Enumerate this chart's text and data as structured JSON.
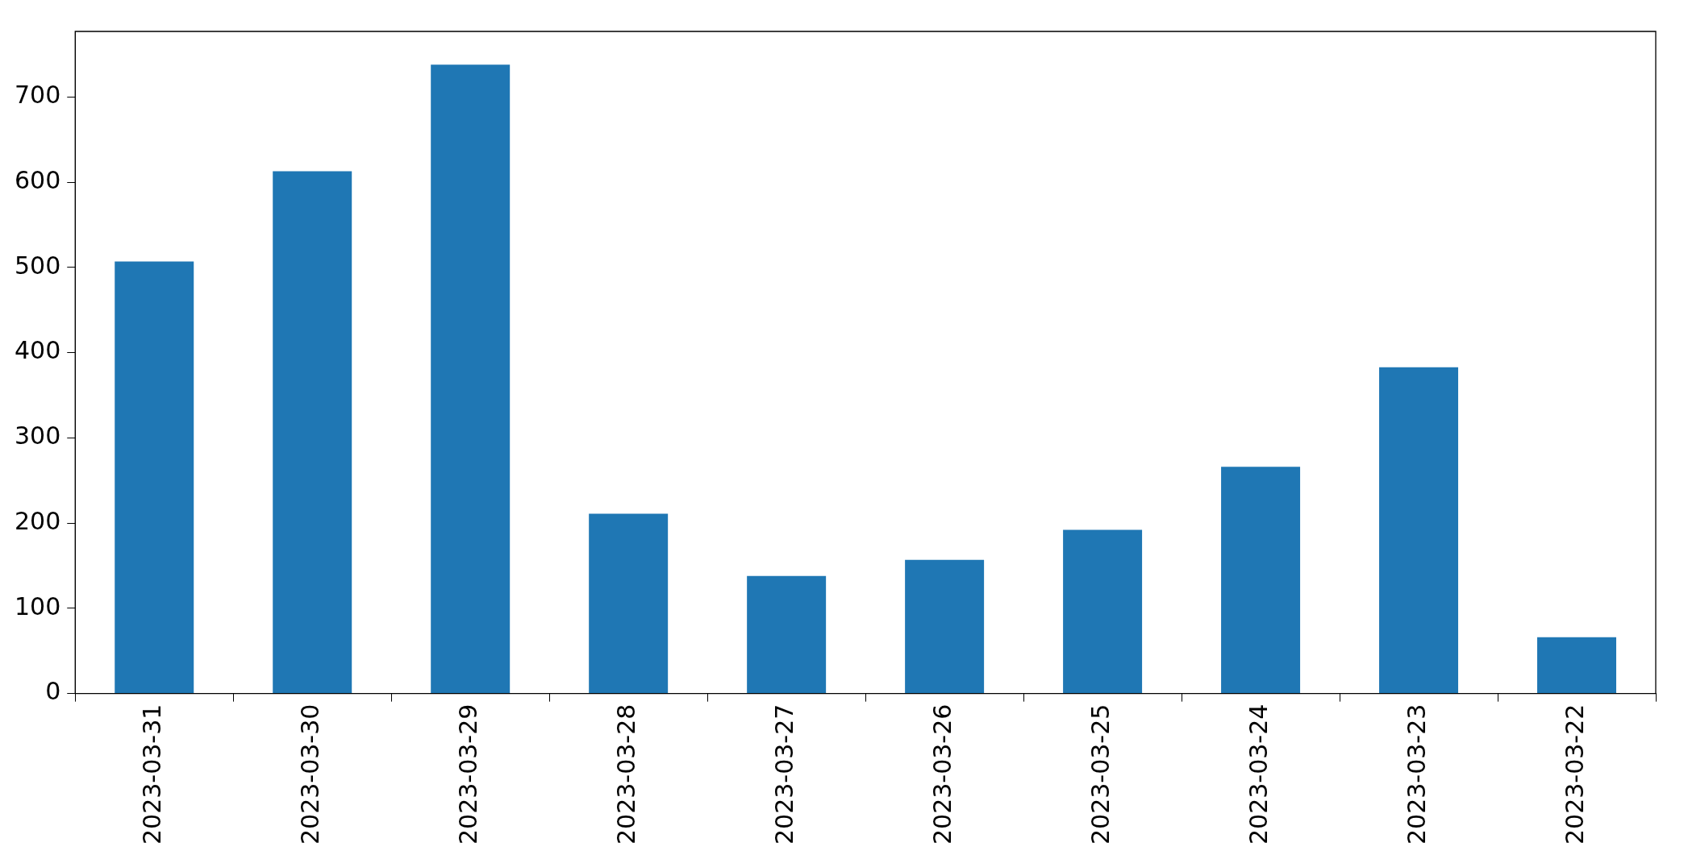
{
  "chart_data": {
    "type": "bar",
    "categories": [
      "2023-03-31",
      "2023-03-30",
      "2023-03-29",
      "2023-03-28",
      "2023-03-27",
      "2023-03-26",
      "2023-03-25",
      "2023-03-24",
      "2023-03-23",
      "2023-03-22"
    ],
    "values": [
      507,
      613,
      738,
      211,
      138,
      157,
      192,
      266,
      383,
      66
    ],
    "color": "#1f77b4",
    "ylim": [
      0,
      777
    ],
    "yticks": [
      0,
      100,
      200,
      300,
      400,
      500,
      600,
      700
    ],
    "grid": false,
    "legend": false
  }
}
